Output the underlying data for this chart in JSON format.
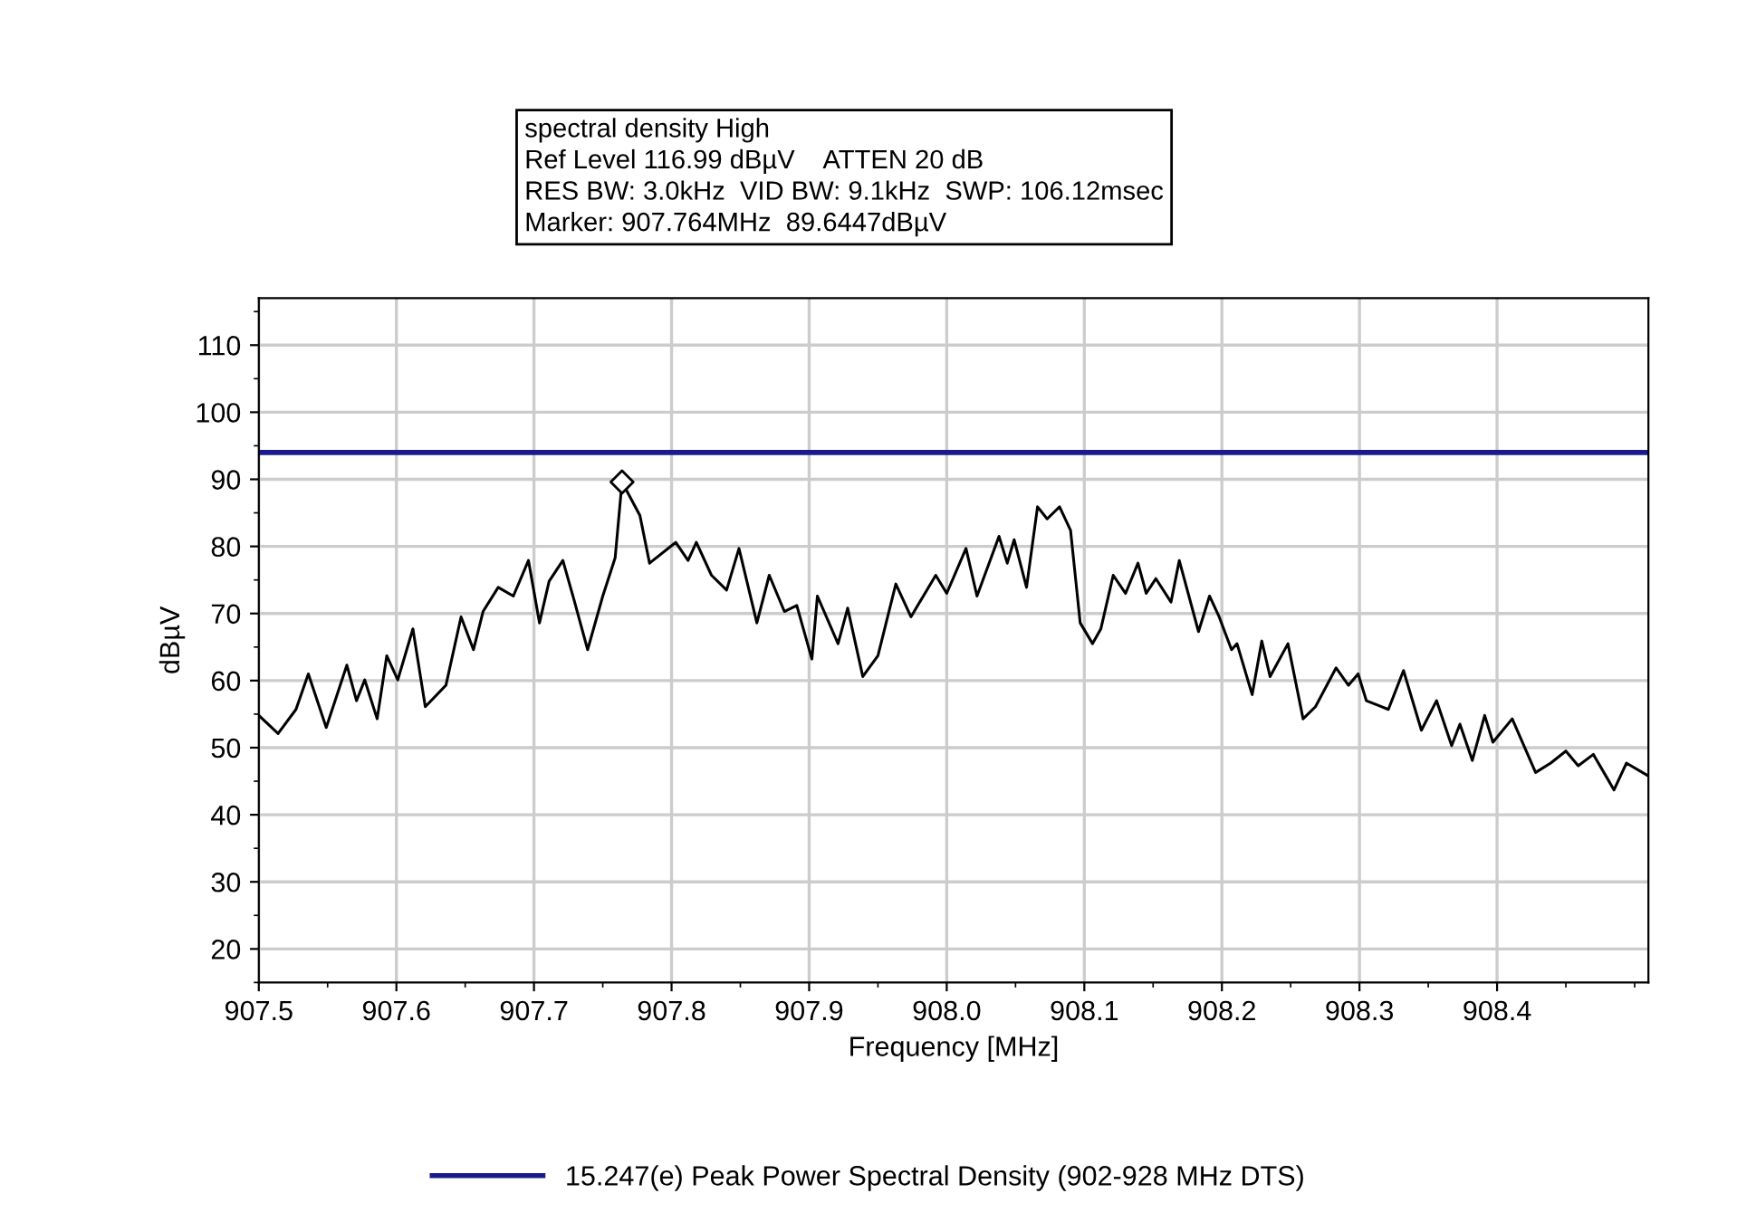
{
  "chart_data": {
    "type": "line",
    "title": "spectral density High",
    "annotations": [
      "Ref Level 116.99 dBµV    ATTEN 20 dB",
      "RES BW: 3.0kHz  VID BW: 9.1kHz  SWP: 106.12msec",
      "Marker: 907.764MHz  89.6447dBµV"
    ],
    "xlabel": "Frequency [MHz]",
    "ylabel": "dBµV",
    "xlim": [
      907.5,
      908.51
    ],
    "ylim": [
      15,
      117
    ],
    "xticks": [
      907.5,
      907.6,
      907.7,
      907.8,
      907.9,
      {
        "value": 908,
        "label": "908.0"
      },
      908.1,
      908.2,
      908.3,
      908.4
    ],
    "yticks": [
      20,
      30,
      40,
      50,
      60,
      70,
      80,
      90,
      100,
      110
    ],
    "grid": true,
    "legend": "bottom",
    "line_style": "solid",
    "marker": "none",
    "series": [
      {
        "color": "#000000",
        "x": [
          907.5,
          907.514,
          907.527,
          907.536,
          907.549,
          907.564,
          907.571,
          907.577,
          907.586,
          907.593,
          907.601,
          907.612,
          907.621,
          907.636,
          907.647,
          907.656,
          907.663,
          907.674,
          907.685,
          907.696,
          907.704,
          907.711,
          907.721,
          907.729,
          907.739,
          907.75,
          907.759,
          907.764,
          907.777,
          907.784,
          907.803,
          907.812,
          907.818,
          907.829,
          907.84,
          907.849,
          907.862,
          907.871,
          907.882,
          907.891,
          907.902,
          907.906,
          907.921,
          907.928,
          907.939,
          907.95,
          907.963,
          907.974,
          907.992,
          908.0,
          908.014,
          908.022,
          908.038,
          908.044,
          908.049,
          908.058,
          908.066,
          908.073,
          908.082,
          908.09,
          908.097,
          908.106,
          908.112,
          908.121,
          908.13,
          908.139,
          908.145,
          908.152,
          908.163,
          908.169,
          908.183,
          908.191,
          908.198,
          908.207,
          908.211,
          908.222,
          908.229,
          908.235,
          908.248,
          908.259,
          908.268,
          908.283,
          908.292,
          908.299,
          908.305,
          908.321,
          908.332,
          908.345,
          908.356,
          908.367,
          908.373,
          908.382,
          908.391,
          908.397,
          908.411,
          908.428,
          908.439,
          908.45,
          908.459,
          908.47,
          908.485,
          908.494,
          908.509
        ],
        "values": [
          54.8,
          52.1,
          55.7,
          61.0,
          53.0,
          62.3,
          57.0,
          60.1,
          54.3,
          63.7,
          60.1,
          67.7,
          56.1,
          59.3,
          69.5,
          64.6,
          70.3,
          73.9,
          72.6,
          77.9,
          68.6,
          74.8,
          77.9,
          72.1,
          64.6,
          72.6,
          78.3,
          89.6,
          84.6,
          77.5,
          80.6,
          77.9,
          80.6,
          75.7,
          73.5,
          79.7,
          68.6,
          75.7,
          70.3,
          71.2,
          63.2,
          72.6,
          65.5,
          70.8,
          60.6,
          63.7,
          74.4,
          69.5,
          75.7,
          73.0,
          79.7,
          72.6,
          81.5,
          77.5,
          81.0,
          73.9,
          85.9,
          84.1,
          85.9,
          82.4,
          68.6,
          65.5,
          67.7,
          75.7,
          73.0,
          77.5,
          73.0,
          75.2,
          71.7,
          77.9,
          67.3,
          72.6,
          69.5,
          64.6,
          65.5,
          57.9,
          65.9,
          60.6,
          65.5,
          54.3,
          56.1,
          61.9,
          59.3,
          61.0,
          57.0,
          55.7,
          61.5,
          52.6,
          57.0,
          50.3,
          53.5,
          48.1,
          54.8,
          50.8,
          54.3,
          46.3,
          47.7,
          49.5,
          47.3,
          49.0,
          43.7,
          47.7,
          45.9
        ]
      },
      {
        "type": "scatter",
        "color": "#000000",
        "marker": "diamond",
        "x": [
          907.764
        ],
        "values": [
          89.6
        ]
      }
    ],
    "ref_lines": [
      {
        "axis": "y",
        "value": 94,
        "label": "15.247(e) Peak Power Spectral Density (902-928 MHz DTS)",
        "color": "#1a1a8c"
      }
    ]
  }
}
